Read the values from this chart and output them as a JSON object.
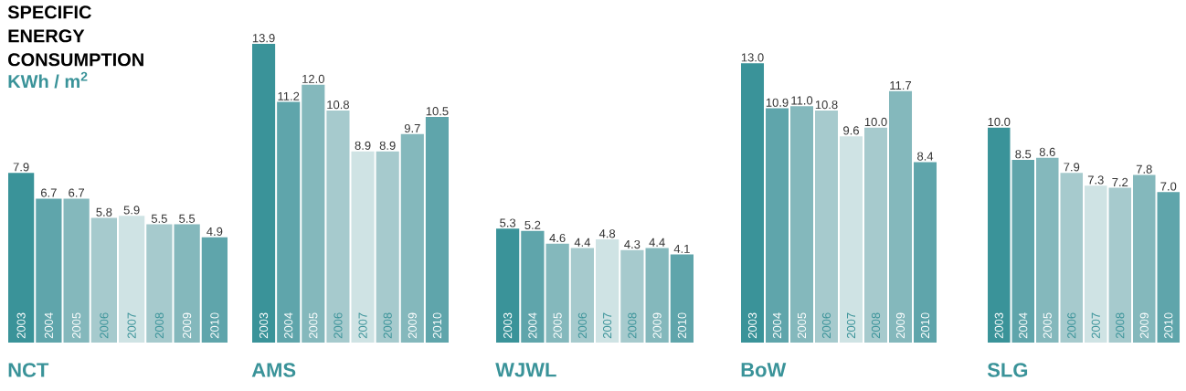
{
  "chart_data": [
    {
      "type": "bar",
      "title": "SPECIFIC ENERGY CONSUMPTION",
      "subtitle": "KWh / m$^{2}$",
      "xlabel": "NCT",
      "categories": [
        "2003",
        "2004",
        "2005",
        "2006",
        "2007",
        "2008",
        "2009",
        "2010"
      ],
      "values": [
        7.9,
        6.7,
        6.7,
        5.8,
        5.9,
        5.5,
        5.5,
        4.9
      ],
      "value_labels": [
        "7.9",
        "6.7",
        "6.7",
        "5.8",
        "5.9",
        "5.5",
        "5.5",
        "4.9"
      ],
      "colors": [
        "#3a9399",
        "#5fa5ab",
        "#84b8bc",
        "#a6cacd",
        "#cfe3e4",
        "#a6cacd",
        "#84b8bc",
        "#5fa5ab"
      ]
    },
    {
      "type": "bar",
      "xlabel": "AMS",
      "categories": [
        "2003",
        "2004",
        "2005",
        "2006",
        "2007",
        "2008",
        "2009",
        "2010"
      ],
      "values": [
        13.9,
        11.2,
        12.0,
        10.8,
        8.9,
        8.9,
        9.7,
        10.5
      ],
      "value_labels": [
        "13.9",
        "11.2",
        "12.0",
        "10.8",
        "8.9",
        "8.9",
        "9.7",
        "10.5"
      ],
      "colors": [
        "#3a9399",
        "#5fa5ab",
        "#84b8bc",
        "#a6cacd",
        "#cfe3e4",
        "#a6cacd",
        "#84b8bc",
        "#5fa5ab"
      ]
    },
    {
      "type": "bar",
      "xlabel": "WJWL",
      "categories": [
        "2003",
        "2004",
        "2005",
        "2006",
        "2007",
        "2008",
        "2009",
        "2010"
      ],
      "values": [
        5.3,
        5.2,
        4.6,
        4.4,
        4.8,
        4.3,
        4.4,
        4.1
      ],
      "value_labels": [
        "5.3",
        "5.2",
        "4.6",
        "4.4",
        "4.8",
        "4.3",
        "4.4",
        "4.1"
      ],
      "colors": [
        "#3a9399",
        "#5fa5ab",
        "#84b8bc",
        "#a6cacd",
        "#cfe3e4",
        "#a6cacd",
        "#84b8bc",
        "#5fa5ab"
      ]
    },
    {
      "type": "bar",
      "xlabel": "BoW",
      "categories": [
        "2003",
        "2004",
        "2005",
        "2006",
        "2007",
        "2008",
        "2009",
        "2010"
      ],
      "values": [
        13.0,
        10.9,
        11.0,
        10.8,
        9.6,
        10.0,
        11.7,
        8.4
      ],
      "value_labels": [
        "13.0",
        "10.9",
        "11.0",
        "10.8",
        "9.6",
        "10.0",
        "11.7",
        "8.4"
      ],
      "colors": [
        "#3a9399",
        "#5fa5ab",
        "#84b8bc",
        "#a6cacd",
        "#cfe3e4",
        "#a6cacd",
        "#84b8bc",
        "#5fa5ab"
      ]
    },
    {
      "type": "bar",
      "xlabel": "SLG",
      "categories": [
        "2003",
        "2004",
        "2005",
        "2006",
        "2007",
        "2008",
        "2009",
        "2010"
      ],
      "values": [
        10.0,
        8.5,
        8.6,
        7.9,
        7.3,
        7.2,
        7.8,
        7.0
      ],
      "value_labels": [
        "10.0",
        "8.5",
        "8.6",
        "7.9",
        "7.3",
        "7.2",
        "7.8",
        "7.0"
      ],
      "colors": [
        "#3a9399",
        "#5fa5ab",
        "#84b8bc",
        "#a6cacd",
        "#cfe3e4",
        "#a6cacd",
        "#84b8bc",
        "#5fa5ab"
      ]
    }
  ]
}
